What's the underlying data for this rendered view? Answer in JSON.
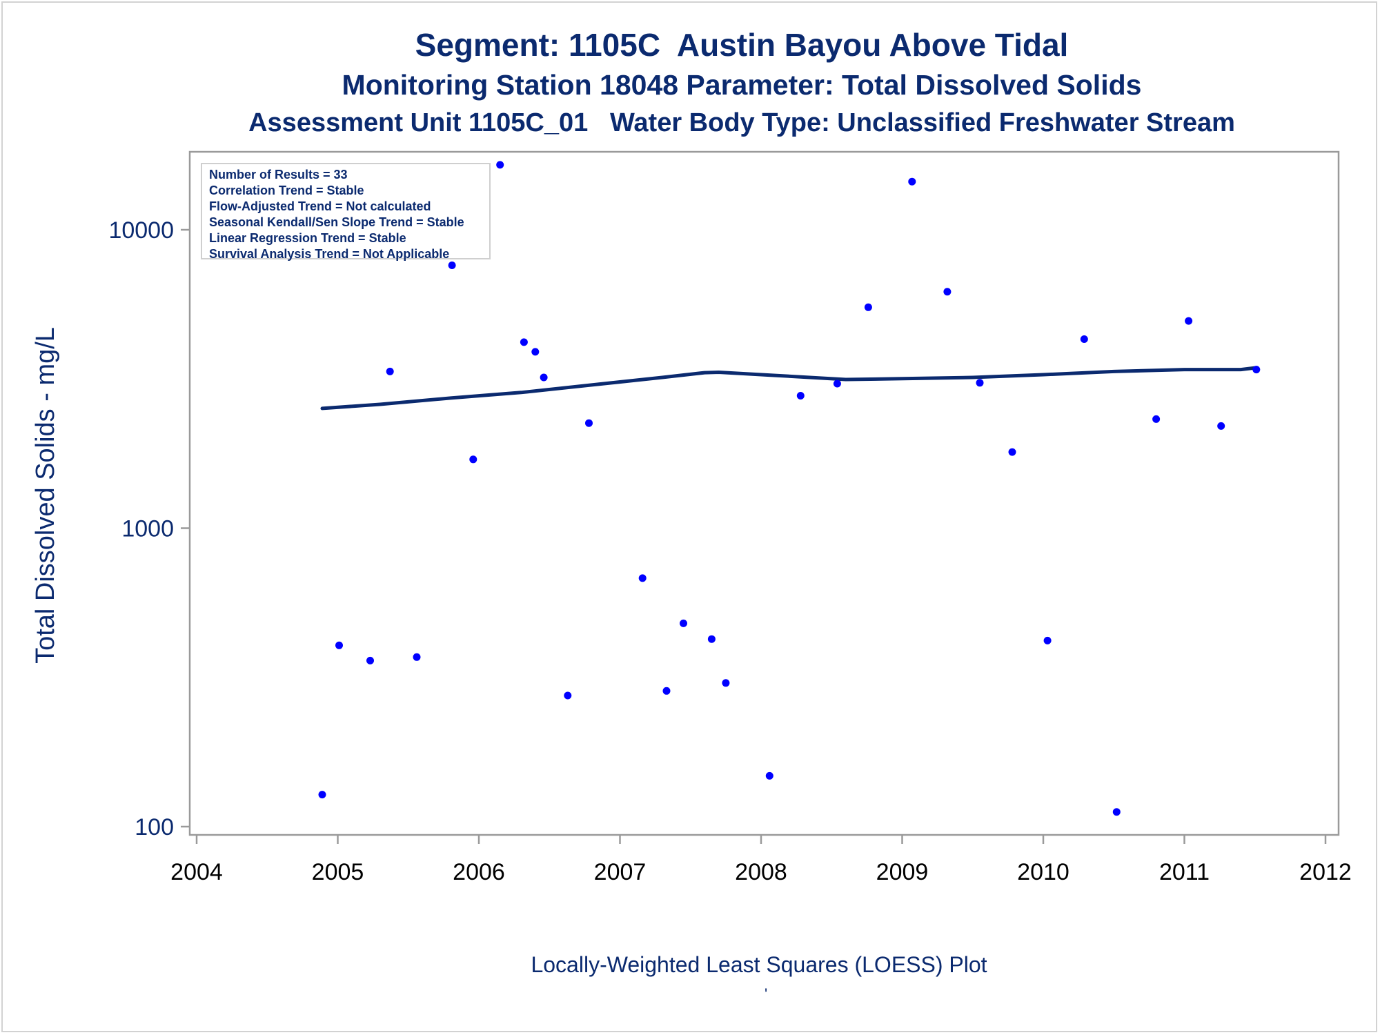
{
  "titles": {
    "line1": "Segment: 1105C  Austin Bayou Above Tidal",
    "line2": "Monitoring Station 18048 Parameter: Total Dissolved Solids",
    "line3": "Assessment Unit 1105C_01   Water Body Type: Unclassified Freshwater Stream"
  },
  "legend": {
    "lines": [
      "Number of Results = 33",
      "Correlation Trend = Stable",
      "Flow-Adjusted Trend = Not calculated",
      "Seasonal Kendall/Sen Slope Trend = Stable",
      "Linear Regression Trend = Stable",
      "Survival Analysis Trend = Not Applicable"
    ]
  },
  "footer": {
    "caption": "Locally-Weighted Least Squares (LOESS) Plot",
    "mark": "'"
  },
  "colors": {
    "text": "#0b2a6f",
    "points": "#0000ff",
    "line": "#0b2a6f",
    "axis": "#9a9a9a"
  },
  "chart_data": {
    "type": "scatter",
    "title": "Segment: 1105C  Austin Bayou Above Tidal",
    "subtitle": "Monitoring Station 18048 Parameter: Total Dissolved Solids",
    "xlabel": "Locally-Weighted Least Squares (LOESS) Plot",
    "ylabel": "Total Dissolved Solids - mg/L",
    "xlim": [
      2004,
      2012
    ],
    "ylim": [
      100,
      17000
    ],
    "y_scale": "log",
    "x_ticks": [
      2004,
      2005,
      2006,
      2007,
      2008,
      2009,
      2010,
      2011,
      2012
    ],
    "y_ticks": [
      100,
      1000,
      10000
    ],
    "grid": false,
    "points": [
      {
        "x": 2004.89,
        "y": 128
      },
      {
        "x": 2005.01,
        "y": 405
      },
      {
        "x": 2005.23,
        "y": 360
      },
      {
        "x": 2005.37,
        "y": 3350
      },
      {
        "x": 2005.56,
        "y": 370
      },
      {
        "x": 2005.81,
        "y": 7600
      },
      {
        "x": 2005.96,
        "y": 1700
      },
      {
        "x": 2006.15,
        "y": 16500
      },
      {
        "x": 2006.32,
        "y": 4200
      },
      {
        "x": 2006.4,
        "y": 3900
      },
      {
        "x": 2006.46,
        "y": 3200
      },
      {
        "x": 2006.63,
        "y": 275
      },
      {
        "x": 2006.78,
        "y": 2250
      },
      {
        "x": 2007.16,
        "y": 680
      },
      {
        "x": 2007.33,
        "y": 285
      },
      {
        "x": 2007.45,
        "y": 480
      },
      {
        "x": 2007.65,
        "y": 425
      },
      {
        "x": 2007.75,
        "y": 303
      },
      {
        "x": 2008.06,
        "y": 148
      },
      {
        "x": 2008.28,
        "y": 2780
      },
      {
        "x": 2008.54,
        "y": 3050
      },
      {
        "x": 2008.76,
        "y": 5500
      },
      {
        "x": 2009.07,
        "y": 14500
      },
      {
        "x": 2009.32,
        "y": 6200
      },
      {
        "x": 2009.55,
        "y": 3070
      },
      {
        "x": 2009.78,
        "y": 1800
      },
      {
        "x": 2010.03,
        "y": 420
      },
      {
        "x": 2010.29,
        "y": 4300
      },
      {
        "x": 2010.52,
        "y": 112
      },
      {
        "x": 2010.8,
        "y": 2320
      },
      {
        "x": 2011.03,
        "y": 4950
      },
      {
        "x": 2011.26,
        "y": 2200
      },
      {
        "x": 2011.51,
        "y": 3400
      }
    ],
    "loess": [
      {
        "x": 2004.89,
        "y": 2520
      },
      {
        "x": 2005.3,
        "y": 2600
      },
      {
        "x": 2005.8,
        "y": 2730
      },
      {
        "x": 2006.3,
        "y": 2850
      },
      {
        "x": 2006.8,
        "y": 3020
      },
      {
        "x": 2007.3,
        "y": 3200
      },
      {
        "x": 2007.6,
        "y": 3320
      },
      {
        "x": 2007.7,
        "y": 3330
      },
      {
        "x": 2008.1,
        "y": 3250
      },
      {
        "x": 2008.6,
        "y": 3150
      },
      {
        "x": 2009.0,
        "y": 3170
      },
      {
        "x": 2009.5,
        "y": 3200
      },
      {
        "x": 2010.0,
        "y": 3270
      },
      {
        "x": 2010.5,
        "y": 3350
      },
      {
        "x": 2011.0,
        "y": 3400
      },
      {
        "x": 2011.4,
        "y": 3400
      },
      {
        "x": 2011.51,
        "y": 3450
      }
    ]
  }
}
